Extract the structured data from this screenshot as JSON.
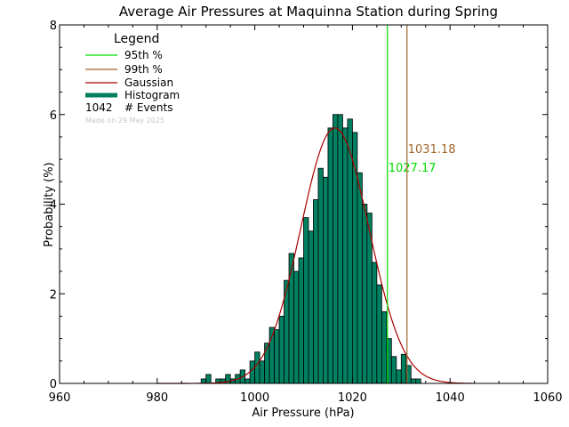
{
  "chart_data": {
    "type": "bar",
    "title": "Average Air Pressures at Maquinna Station during Spring",
    "xlabel": "Air Pressure (hPa)",
    "ylabel": "Probability (%)",
    "xlim": [
      960,
      1060
    ],
    "ylim": [
      0,
      8
    ],
    "x_ticks": [
      "960",
      "980",
      "1000",
      "1020",
      "1040",
      "1060"
    ],
    "y_ticks": [
      "0",
      "2",
      "4",
      "6",
      "8"
    ],
    "grid": false,
    "legend": {
      "title": "Legend",
      "placement": "top-left",
      "entries": [
        {
          "label": "95th %",
          "color": "#00dd00",
          "kind": "line"
        },
        {
          "label": "99th %",
          "color": "#a0642a",
          "kind": "line"
        },
        {
          "label": "Gaussian",
          "color": "#aa0000",
          "kind": "line"
        },
        {
          "label": "Histogram",
          "color": "#008060",
          "kind": "thick"
        }
      ],
      "events_count": "1042",
      "events_label": "# Events",
      "made_on": "Made on 29 May 2025"
    },
    "percentile_lines": [
      {
        "name": "95th %",
        "value": 1027.17,
        "label": "1027.17",
        "color": "#00dd00"
      },
      {
        "name": "99th %",
        "value": 1031.18,
        "label": "1031.18",
        "color": "#a0642a"
      }
    ],
    "gaussian": {
      "mean": 1016.4,
      "sigma": 7.0,
      "peak": 5.7,
      "color": "#aa0000"
    },
    "histogram": {
      "bin_width": 1,
      "fill_color": "#008060",
      "edge_color": "#000000",
      "bins": [
        [
          989,
          0.1
        ],
        [
          990,
          0.2
        ],
        [
          991,
          0.0
        ],
        [
          992,
          0.1
        ],
        [
          993,
          0.1
        ],
        [
          994,
          0.2
        ],
        [
          995,
          0.1
        ],
        [
          996,
          0.2
        ],
        [
          997,
          0.3
        ],
        [
          998,
          0.1
        ],
        [
          999,
          0.5
        ],
        [
          1000,
          0.7
        ],
        [
          1001,
          0.5
        ],
        [
          1002,
          0.9
        ],
        [
          1003,
          1.25
        ],
        [
          1004,
          1.2
        ],
        [
          1005,
          1.5
        ],
        [
          1006,
          2.3
        ],
        [
          1007,
          2.9
        ],
        [
          1008,
          2.5
        ],
        [
          1009,
          2.8
        ],
        [
          1010,
          3.7
        ],
        [
          1011,
          3.4
        ],
        [
          1012,
          4.1
        ],
        [
          1013,
          4.8
        ],
        [
          1014,
          4.6
        ],
        [
          1015,
          5.7
        ],
        [
          1016,
          6.0
        ],
        [
          1017,
          6.0
        ],
        [
          1018,
          5.7
        ],
        [
          1019,
          5.9
        ],
        [
          1020,
          5.6
        ],
        [
          1021,
          4.7
        ],
        [
          1022,
          4.0
        ],
        [
          1023,
          3.8
        ],
        [
          1024,
          2.7
        ],
        [
          1025,
          2.2
        ],
        [
          1026,
          1.6
        ],
        [
          1027,
          1.0
        ],
        [
          1028,
          0.6
        ],
        [
          1029,
          0.3
        ],
        [
          1030,
          0.65
        ],
        [
          1031,
          0.4
        ],
        [
          1032,
          0.1
        ],
        [
          1033,
          0.1
        ]
      ]
    }
  }
}
